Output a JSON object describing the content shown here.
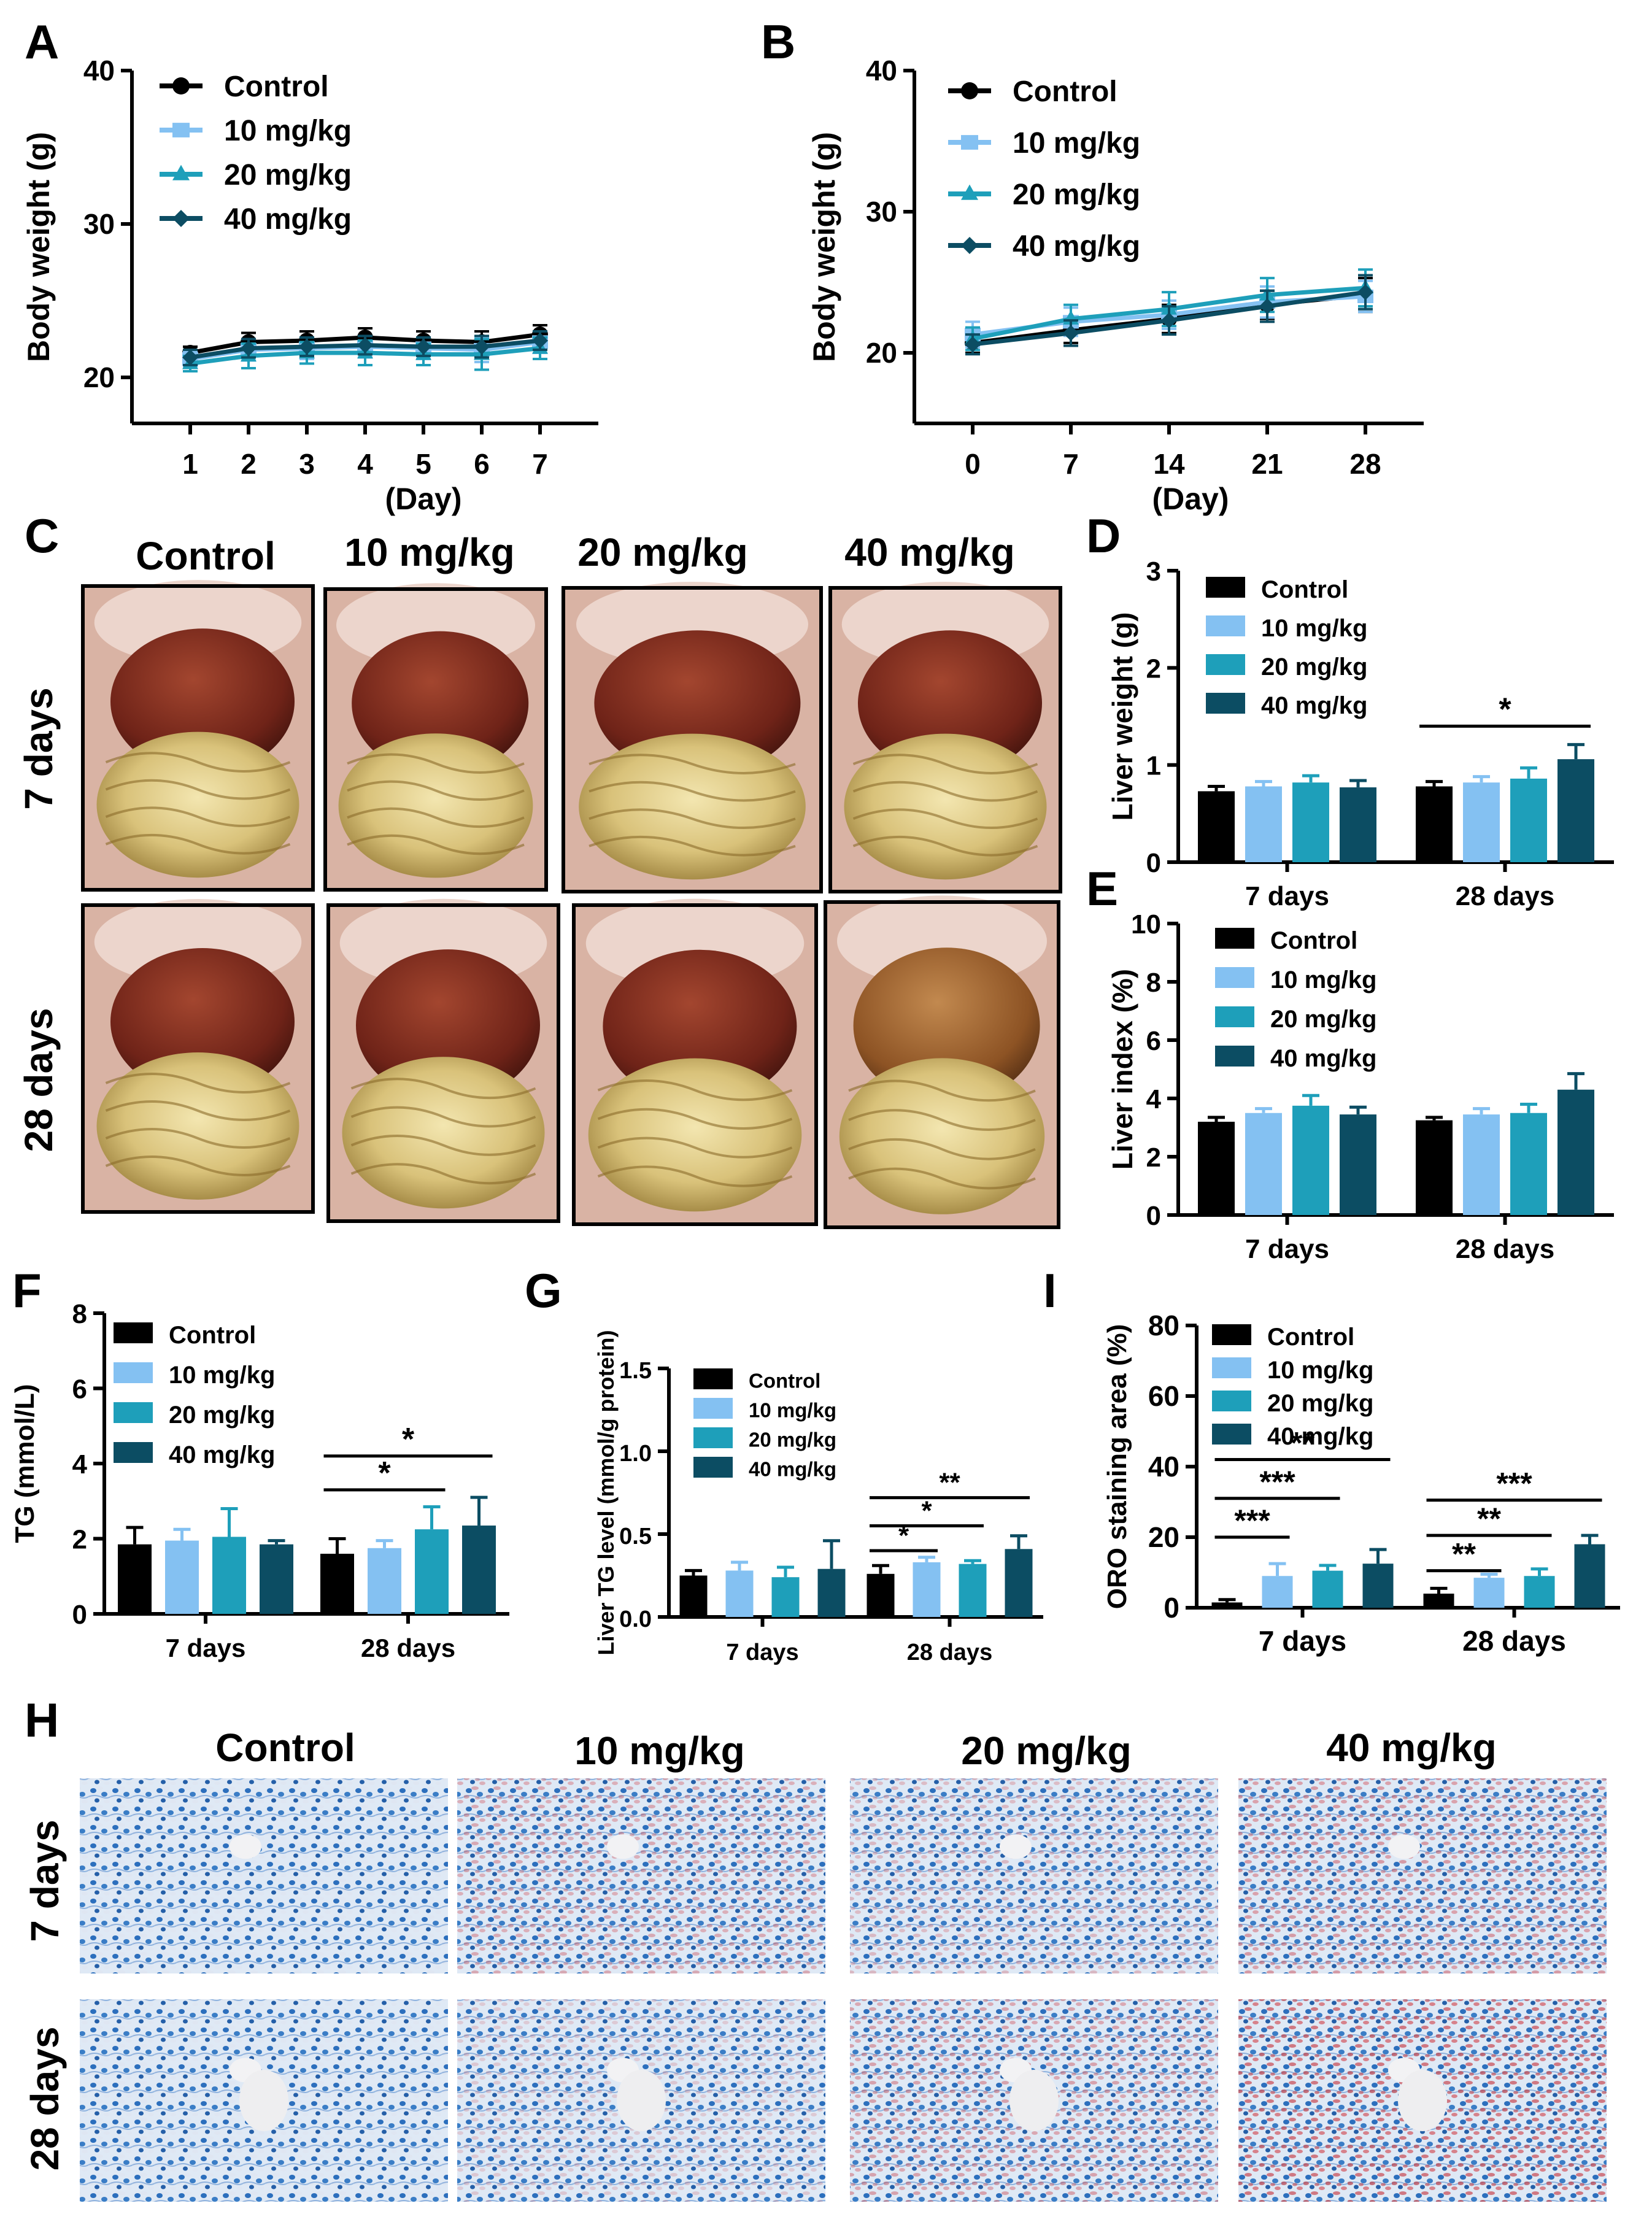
{
  "colors": {
    "Control": "#000000",
    "10 mg/kg": "#84c1f2",
    "20 mg/kg": "#1e9fba",
    "40 mg/kg": "#0c4d63"
  },
  "groups": [
    "Control",
    "10 mg/kg",
    "20 mg/kg",
    "40 mg/kg"
  ],
  "photo_grid": {
    "letter": "C",
    "column_headers": [
      "Control",
      "10 mg/kg",
      "20 mg/kg",
      "40 mg/kg"
    ],
    "row_labels": [
      "7 days",
      "28 days"
    ]
  },
  "histology_grid": {
    "letter": "H",
    "column_headers": [
      "Control",
      "10 mg/kg",
      "20 mg/kg",
      "40 mg/kg"
    ],
    "row_labels": [
      "7 days",
      "28 days"
    ],
    "red_stain_level": [
      [
        0.02,
        0.45,
        0.35,
        0.55
      ],
      [
        0.02,
        0.25,
        0.5,
        0.8
      ]
    ]
  },
  "chart_data": [
    {
      "id": "A",
      "letter": "A",
      "type": "line",
      "x": [
        1,
        2,
        3,
        4,
        5,
        6,
        7
      ],
      "xlabel": "(Day)",
      "ylabel": "Body weight (g)",
      "ylim": [
        17,
        40
      ],
      "yticks": [
        20,
        30,
        40
      ],
      "series": [
        {
          "name": "Control",
          "values": [
            21.6,
            22.3,
            22.4,
            22.6,
            22.4,
            22.3,
            22.8
          ],
          "err": [
            0.4,
            0.6,
            0.6,
            0.6,
            0.6,
            0.7,
            0.6
          ]
        },
        {
          "name": "10 mg/kg",
          "values": [
            21.2,
            21.8,
            21.9,
            22.0,
            21.9,
            21.8,
            22.3
          ],
          "err": [
            0.5,
            0.7,
            0.7,
            0.7,
            0.7,
            0.8,
            0.7
          ]
        },
        {
          "name": "20 mg/kg",
          "values": [
            20.9,
            21.4,
            21.6,
            21.6,
            21.5,
            21.5,
            21.9
          ],
          "err": [
            0.5,
            0.8,
            0.7,
            0.8,
            0.7,
            1.0,
            0.7
          ]
        },
        {
          "name": "40 mg/kg",
          "values": [
            21.3,
            21.9,
            22.0,
            22.1,
            22.0,
            22.0,
            22.4
          ],
          "err": [
            0.5,
            0.6,
            0.6,
            0.6,
            0.6,
            0.7,
            0.6
          ]
        }
      ],
      "legend": "top-left"
    },
    {
      "id": "B",
      "letter": "B",
      "type": "line",
      "x": [
        0,
        7,
        14,
        21,
        28
      ],
      "xlabel": "(Day)",
      "ylabel": "Body weight (g)",
      "ylim": [
        15,
        40
      ],
      "yticks": [
        20,
        30,
        40
      ],
      "series": [
        {
          "name": "Control",
          "values": [
            20.7,
            21.6,
            22.4,
            23.4,
            24.1
          ],
          "err": [
            0.7,
            0.9,
            1.0,
            1.0,
            1.2
          ]
        },
        {
          "name": "10 mg/kg",
          "values": [
            21.3,
            22.2,
            22.7,
            23.6,
            24.0
          ],
          "err": [
            0.9,
            1.0,
            1.0,
            1.1,
            1.1
          ]
        },
        {
          "name": "20 mg/kg",
          "values": [
            21.0,
            22.4,
            23.1,
            24.1,
            24.6
          ],
          "err": [
            0.8,
            1.0,
            1.2,
            1.2,
            1.3
          ]
        },
        {
          "name": "40 mg/kg",
          "values": [
            20.6,
            21.4,
            22.3,
            23.3,
            24.3
          ],
          "err": [
            0.7,
            0.9,
            1.0,
            1.1,
            1.2
          ]
        }
      ],
      "legend": "top-left"
    },
    {
      "id": "D",
      "letter": "D",
      "type": "bar",
      "categories": [
        "7 days",
        "28 days"
      ],
      "ylabel": "Liver weight (g)",
      "ylim": [
        0,
        3
      ],
      "yticks": [
        0,
        1,
        2,
        3
      ],
      "series": [
        {
          "name": "Control",
          "values": [
            0.73,
            0.78
          ],
          "err": [
            0.05,
            0.05
          ]
        },
        {
          "name": "10 mg/kg",
          "values": [
            0.78,
            0.82
          ],
          "err": [
            0.05,
            0.06
          ]
        },
        {
          "name": "20 mg/kg",
          "values": [
            0.82,
            0.86
          ],
          "err": [
            0.07,
            0.11
          ]
        },
        {
          "name": "40 mg/kg",
          "values": [
            0.77,
            1.06
          ],
          "err": [
            0.07,
            0.15
          ]
        }
      ],
      "sig": [
        {
          "cat": 1,
          "from": 0,
          "to": 3,
          "y": 1.4,
          "label": "*"
        }
      ],
      "legend": "top-left"
    },
    {
      "id": "E",
      "letter": "E",
      "type": "bar",
      "categories": [
        "7 days",
        "28 days"
      ],
      "ylabel": "Liver index (%)",
      "ylim": [
        0,
        10
      ],
      "yticks": [
        0,
        2,
        4,
        6,
        8,
        10
      ],
      "series": [
        {
          "name": "Control",
          "values": [
            3.2,
            3.25
          ],
          "err": [
            0.15,
            0.1
          ]
        },
        {
          "name": "10 mg/kg",
          "values": [
            3.5,
            3.45
          ],
          "err": [
            0.15,
            0.2
          ]
        },
        {
          "name": "20 mg/kg",
          "values": [
            3.75,
            3.5
          ],
          "err": [
            0.35,
            0.3
          ]
        },
        {
          "name": "40 mg/kg",
          "values": [
            3.45,
            4.3
          ],
          "err": [
            0.25,
            0.55
          ]
        }
      ],
      "sig": [],
      "legend": "top-left"
    },
    {
      "id": "F",
      "letter": "F",
      "type": "bar",
      "categories": [
        "7 days",
        "28 days"
      ],
      "ylabel": "TG (mmol/L)",
      "ylim": [
        0,
        8
      ],
      "yticks": [
        0,
        2,
        4,
        6,
        8
      ],
      "series": [
        {
          "name": "Control",
          "values": [
            1.85,
            1.6
          ],
          "err": [
            0.45,
            0.4
          ]
        },
        {
          "name": "10 mg/kg",
          "values": [
            1.95,
            1.75
          ],
          "err": [
            0.3,
            0.2
          ]
        },
        {
          "name": "20 mg/kg",
          "values": [
            2.05,
            2.25
          ],
          "err": [
            0.75,
            0.6
          ]
        },
        {
          "name": "40 mg/kg",
          "values": [
            1.85,
            2.35
          ],
          "err": [
            0.1,
            0.75
          ]
        }
      ],
      "sig": [
        {
          "cat": 1,
          "from": 0,
          "to": 2,
          "y": 3.3,
          "label": "*"
        },
        {
          "cat": 1,
          "from": 0,
          "to": 3,
          "y": 4.2,
          "label": "*"
        }
      ],
      "legend": "top-left"
    },
    {
      "id": "G",
      "letter": "G",
      "type": "bar",
      "categories": [
        "7 days",
        "28 days"
      ],
      "ylabel": "Liver TG level (mmol/g protein)",
      "ylim": [
        0,
        1.5
      ],
      "yticks": [
        0,
        0.5,
        1.0,
        1.5
      ],
      "ytick_labels": [
        "0.0",
        "0.5",
        "1.0",
        "1.5"
      ],
      "series": [
        {
          "name": "Control",
          "values": [
            0.25,
            0.26
          ],
          "err": [
            0.03,
            0.05
          ]
        },
        {
          "name": "10 mg/kg",
          "values": [
            0.28,
            0.33
          ],
          "err": [
            0.05,
            0.03
          ]
        },
        {
          "name": "20 mg/kg",
          "values": [
            0.24,
            0.32
          ],
          "err": [
            0.06,
            0.02
          ]
        },
        {
          "name": "40 mg/kg",
          "values": [
            0.29,
            0.41
          ],
          "err": [
            0.17,
            0.08
          ]
        }
      ],
      "sig": [
        {
          "cat": 1,
          "from": 0,
          "to": 1,
          "y": 0.4,
          "label": "*"
        },
        {
          "cat": 1,
          "from": 0,
          "to": 2,
          "y": 0.55,
          "label": "*"
        },
        {
          "cat": 1,
          "from": 0,
          "to": 3,
          "y": 0.72,
          "label": "**"
        }
      ],
      "legend": "top-left"
    },
    {
      "id": "I",
      "letter": "I",
      "type": "bar",
      "categories": [
        "7 days",
        "28 days"
      ],
      "ylabel": "ORO staining area (%)",
      "ylim": [
        0,
        80
      ],
      "yticks": [
        0,
        20,
        40,
        60,
        80
      ],
      "series": [
        {
          "name": "Control",
          "values": [
            1.5,
            4.0
          ],
          "err": [
            0.8,
            1.5
          ]
        },
        {
          "name": "10 mg/kg",
          "values": [
            9.0,
            8.5
          ],
          "err": [
            3.5,
            1.0
          ]
        },
        {
          "name": "20 mg/kg",
          "values": [
            10.5,
            9.0
          ],
          "err": [
            1.5,
            2.0
          ]
        },
        {
          "name": "40 mg/kg",
          "values": [
            12.5,
            18.0
          ],
          "err": [
            4.0,
            2.5
          ]
        }
      ],
      "sig": [
        {
          "cat": 0,
          "from": 0,
          "to": 1,
          "y": 20,
          "label": "***"
        },
        {
          "cat": 0,
          "from": 0,
          "to": 2,
          "y": 31,
          "label": "***"
        },
        {
          "cat": 0,
          "from": 0,
          "to": 3,
          "y": 42,
          "label": "**"
        },
        {
          "cat": 1,
          "from": 0,
          "to": 1,
          "y": 10.5,
          "label": "**"
        },
        {
          "cat": 1,
          "from": 0,
          "to": 2,
          "y": 20.5,
          "label": "**"
        },
        {
          "cat": 1,
          "from": 0,
          "to": 3,
          "y": 30.5,
          "label": "***"
        }
      ],
      "legend": "top-left"
    }
  ]
}
